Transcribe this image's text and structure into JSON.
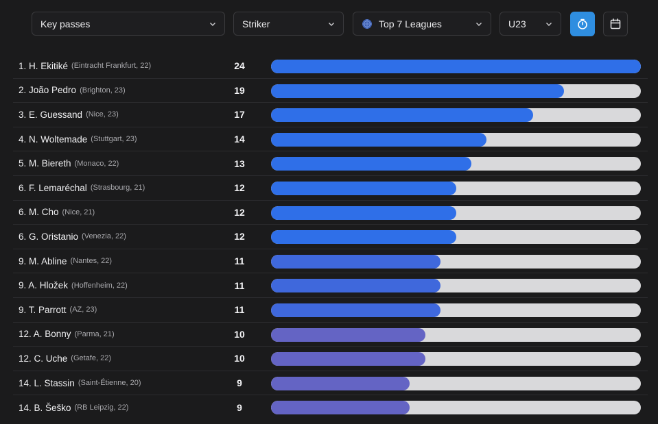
{
  "filters": {
    "metric": "Key passes",
    "position": "Striker",
    "competition": "Top 7 Leagues",
    "age": "U23"
  },
  "icons": {
    "chevron": "chevron-down-icon",
    "competition": "globe-icon",
    "toggle": "stopwatch-icon",
    "calendar": "calendar-icon"
  },
  "colors": {
    "accent": "#2f8ee0",
    "bar_blue": "#2f6fe8",
    "bar_mid": "#3f68dc",
    "bar_indigo": "#6464c4",
    "track": "#d9d9db"
  },
  "chart_data": {
    "type": "bar",
    "orientation": "horizontal",
    "title": "Key passes",
    "xlim": [
      0,
      24
    ],
    "categories": [
      "1. H. Ekitiké",
      "2. João Pedro",
      "3. E. Guessand",
      "4. N. Woltemade",
      "5. M. Biereth",
      "6. F. Lemaréchal",
      "6. M. Cho",
      "6. G. Oristanio",
      "9. M. Abline",
      "9. A. Hložek",
      "9. T. Parrott",
      "12. A. Bonny",
      "12. C. Uche",
      "14. L. Stassin",
      "14. B. Šeško"
    ],
    "values": [
      24,
      19,
      17,
      14,
      13,
      12,
      12,
      12,
      11,
      11,
      11,
      10,
      10,
      9,
      9
    ]
  },
  "players": [
    {
      "name": "1. H. Ekitiké",
      "meta": "(Eintracht Frankfurt, 22)",
      "value": 24
    },
    {
      "name": "2. João Pedro",
      "meta": "(Brighton, 23)",
      "value": 19
    },
    {
      "name": "3. E. Guessand",
      "meta": "(Nice, 23)",
      "value": 17
    },
    {
      "name": "4. N. Woltemade",
      "meta": "(Stuttgart, 23)",
      "value": 14
    },
    {
      "name": "5. M. Biereth",
      "meta": "(Monaco, 22)",
      "value": 13
    },
    {
      "name": "6. F. Lemaréchal",
      "meta": "(Strasbourg, 21)",
      "value": 12
    },
    {
      "name": "6. M. Cho",
      "meta": "(Nice, 21)",
      "value": 12
    },
    {
      "name": "6. G. Oristanio",
      "meta": "(Venezia, 22)",
      "value": 12
    },
    {
      "name": "9. M. Abline",
      "meta": "(Nantes, 22)",
      "value": 11
    },
    {
      "name": "9. A. Hložek",
      "meta": "(Hoffenheim, 22)",
      "value": 11
    },
    {
      "name": "9. T. Parrott",
      "meta": "(AZ, 23)",
      "value": 11
    },
    {
      "name": "12. A. Bonny",
      "meta": "(Parma, 21)",
      "value": 10
    },
    {
      "name": "12. C. Uche",
      "meta": "(Getafe, 22)",
      "value": 10
    },
    {
      "name": "14. L. Stassin",
      "meta": "(Saint-Étienne, 20)",
      "value": 9
    },
    {
      "name": "14. B. Šeško",
      "meta": "(RB Leipzig, 22)",
      "value": 9
    }
  ]
}
